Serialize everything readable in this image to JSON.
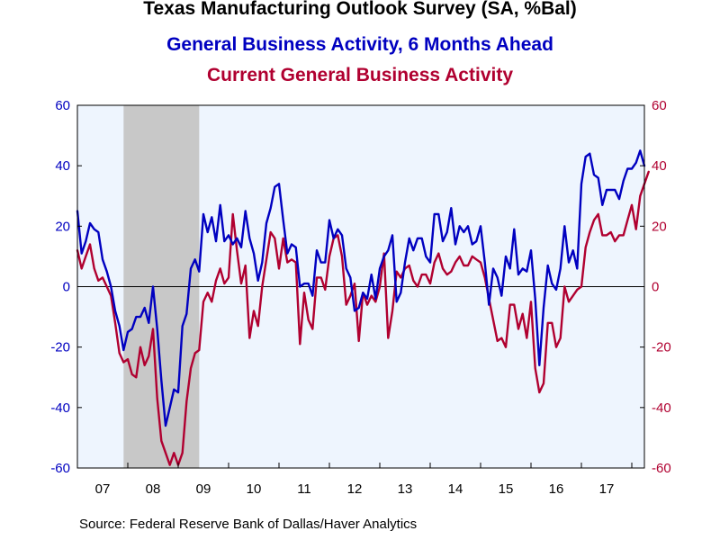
{
  "chart_data": {
    "type": "line",
    "title": "Texas Manufacturing Outlook Survey (SA, %Bal)",
    "series": [
      {
        "name": "General Business Activity, 6 Months Ahead",
        "color": "#0000c0",
        "axis": "left",
        "start": "2007-01",
        "values": [
          25,
          11,
          15,
          21,
          19,
          18,
          9,
          5,
          0,
          -8,
          -13,
          -21,
          -15,
          -14,
          -10,
          -10,
          -7,
          -12,
          0,
          -14,
          -31,
          -46,
          -40,
          -34,
          -35,
          -13,
          -9,
          6,
          9,
          5,
          24,
          18,
          23,
          15,
          27,
          15,
          17,
          14,
          16,
          13,
          25,
          16,
          11,
          2,
          8,
          21,
          26,
          33,
          34,
          22,
          11,
          14,
          13,
          0,
          1,
          1,
          -3,
          12,
          8,
          8,
          22,
          16,
          19,
          17,
          6,
          3,
          -8,
          -7,
          -2,
          -4,
          4,
          -4,
          6,
          10,
          12,
          17,
          -5,
          -2,
          8,
          16,
          12,
          16,
          16,
          10,
          8,
          24,
          24,
          15,
          18,
          26,
          14,
          20,
          18,
          20,
          14,
          15,
          20,
          8,
          -6,
          6,
          3,
          -3,
          10,
          6,
          19,
          4,
          6,
          5,
          12,
          -4,
          -26,
          -7,
          7,
          1,
          -1,
          6,
          20,
          8,
          12,
          6,
          34,
          43,
          44,
          37,
          36,
          27,
          32,
          32,
          32,
          29,
          35,
          39,
          39,
          41,
          45,
          40
        ]
      },
      {
        "name": "Current General Business Activity",
        "color": "#b00030",
        "axis": "right",
        "start": "2007-01",
        "values": [
          12,
          6,
          10,
          14,
          6,
          2,
          3,
          0,
          -3,
          -12,
          -22,
          -25,
          -24,
          -29,
          -30,
          -20,
          -26,
          -23,
          -14,
          -37,
          -51,
          -55,
          -59,
          -55,
          -59,
          -55,
          -38,
          -27,
          -22,
          -21,
          -5,
          -2,
          -5,
          2,
          6,
          1,
          3,
          24,
          12,
          1,
          7,
          -17,
          -8,
          -13,
          0,
          9,
          18,
          16,
          6,
          16,
          8,
          9,
          8,
          -19,
          -2,
          -11,
          -14,
          3,
          3,
          -1,
          10,
          16,
          17,
          10,
          -6,
          -3,
          1,
          -18,
          -2,
          -6,
          -3,
          -5,
          0,
          11,
          -17,
          -8,
          5,
          3,
          6,
          7,
          2,
          0,
          4,
          4,
          1,
          8,
          11,
          6,
          4,
          5,
          8,
          10,
          7,
          7,
          10,
          9,
          8,
          3,
          -4,
          -11,
          -18,
          -17,
          -20,
          -6,
          -6,
          -14,
          -9,
          -17,
          -5,
          -27,
          -35,
          -32,
          -12,
          -12,
          -20,
          -17,
          0,
          -5,
          -3,
          -1,
          0,
          13,
          18,
          22,
          24,
          17,
          17,
          18,
          15,
          17,
          17,
          22,
          27,
          19,
          30,
          34,
          38
        ]
      }
    ],
    "yaxis_left": {
      "min": -60,
      "max": 60,
      "ticks": [
        60,
        40,
        20,
        0,
        -20,
        -40,
        -60
      ],
      "color": "#0000c0"
    },
    "yaxis_right": {
      "min": -60,
      "max": 60,
      "ticks": [
        60,
        40,
        20,
        0,
        -20,
        -40,
        -60
      ],
      "color": "#b00030"
    },
    "x_range": [
      "2007-01",
      "2018-04"
    ],
    "x_tick_labels": [
      "07",
      "08",
      "09",
      "10",
      "11",
      "12",
      "13",
      "14",
      "15",
      "16",
      "17"
    ],
    "recession_band": {
      "start": "2007-12",
      "end": "2009-06"
    },
    "xlabel": "",
    "ylabel": "",
    "grid": false,
    "zero_line": true
  },
  "footer": {
    "source": "Source:  Federal Reserve Bank of Dallas/Haver Analytics"
  }
}
